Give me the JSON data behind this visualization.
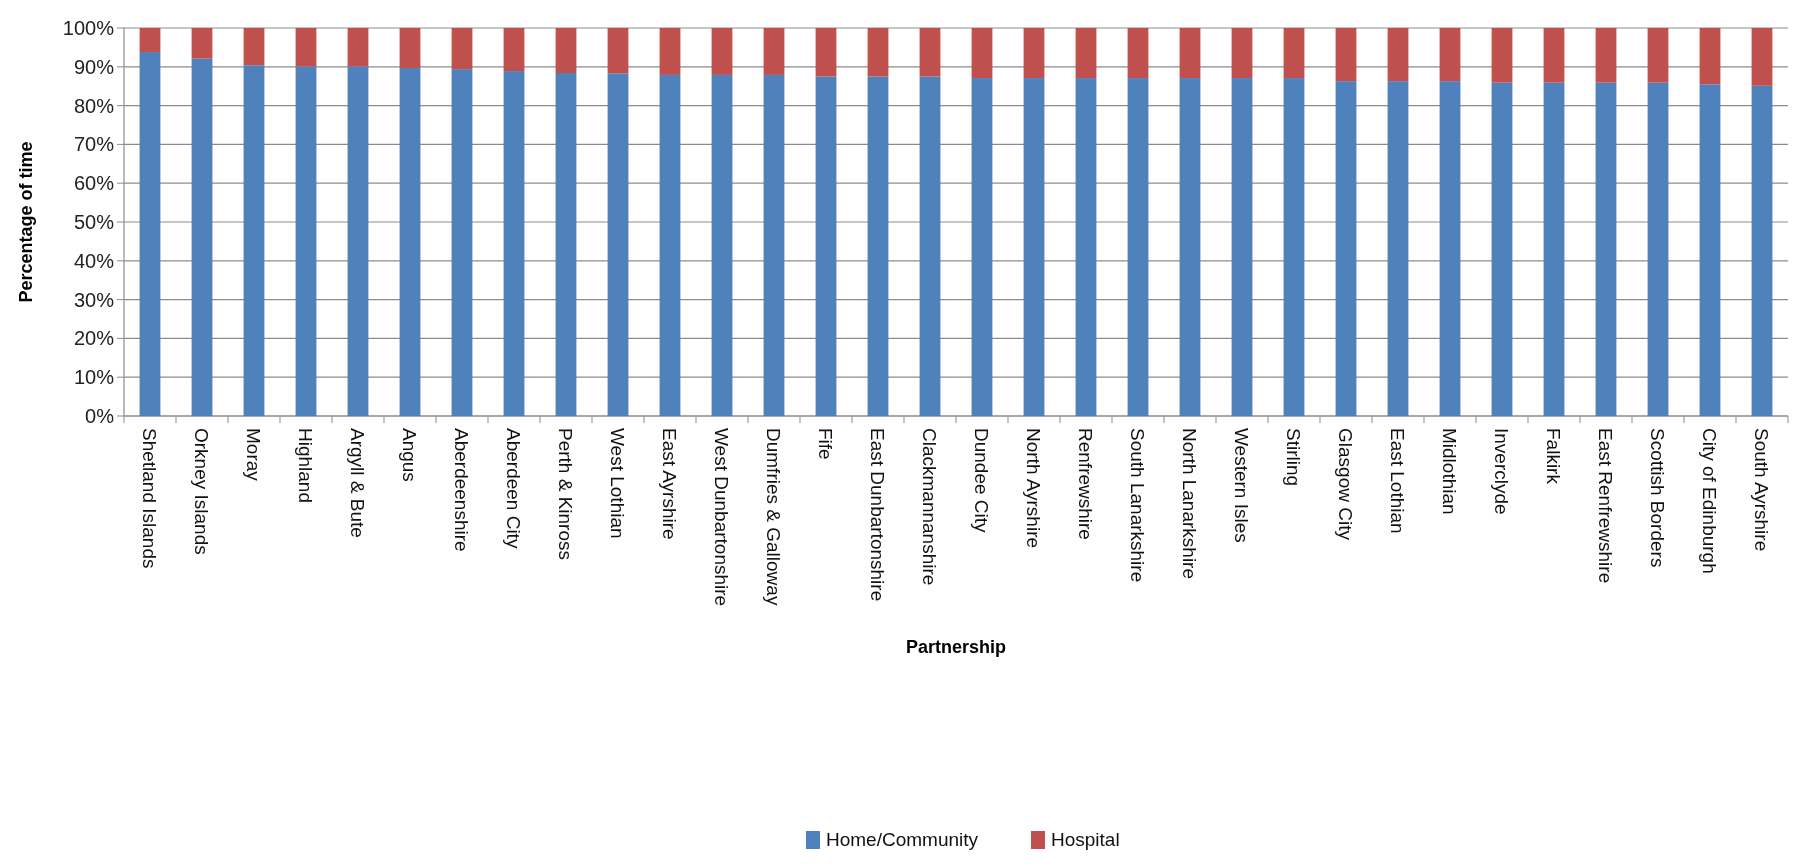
{
  "chart_data": {
    "type": "bar",
    "stacked": true,
    "xlabel": "Partnership",
    "ylabel": "Percentage of time",
    "categories": [
      "Shetland Islands",
      "Orkney Islands",
      "Moray",
      "Highland",
      "Argyll & Bute",
      "Angus",
      "Aberdeenshire",
      "Aberdeen City",
      "Perth & Kinross",
      "West Lothian",
      "East Ayrshire",
      "West Dunbartonshire",
      "Dumfries & Galloway",
      "Fife",
      "East Dunbartonshire",
      "Clackmannanshire",
      "Dundee City",
      "North Ayrshire",
      "Renfrewshire",
      "South Lanarkshire",
      "North Lanarkshire",
      "Western Isles",
      "Stirling",
      "Glasgow City",
      "East Lothian",
      "Midlothian",
      "Inverclyde",
      "Falkirk",
      "East Renfrewshire",
      "Scottish Borders",
      "City of Edinburgh",
      "South Ayrshire"
    ],
    "series": [
      {
        "name": "Home/Community",
        "color": "#4f81bd",
        "values": [
          93.8,
          92.1,
          90.4,
          90.1,
          90.1,
          89.7,
          89.4,
          88.9,
          88.4,
          88.3,
          87.9,
          87.9,
          87.9,
          87.5,
          87.5,
          87.5,
          87.1,
          87.1,
          87.1,
          87.1,
          87.1,
          87.1,
          87.1,
          86.3,
          86.3,
          86.3,
          85.9,
          85.9,
          85.9,
          85.9,
          85.5,
          85.1
        ]
      },
      {
        "name": "Hospital",
        "color": "#c0504d",
        "values": [
          6.2,
          7.9,
          9.6,
          9.9,
          9.9,
          10.3,
          10.6,
          11.1,
          11.6,
          11.7,
          12.1,
          12.1,
          12.1,
          12.5,
          12.5,
          12.5,
          12.9,
          12.9,
          12.9,
          12.9,
          12.9,
          12.9,
          12.9,
          13.7,
          13.7,
          13.7,
          14.1,
          14.1,
          14.1,
          14.1,
          14.5,
          14.9
        ]
      }
    ],
    "ylim": [
      0,
      100
    ],
    "yticks": [
      {
        "value": 0,
        "label": "0%"
      },
      {
        "value": 10,
        "label": "10%"
      },
      {
        "value": 20,
        "label": "20%"
      },
      {
        "value": 30,
        "label": "30%"
      },
      {
        "value": 40,
        "label": "40%"
      },
      {
        "value": 50,
        "label": "50%"
      },
      {
        "value": 60,
        "label": "60%"
      },
      {
        "value": 70,
        "label": "70%"
      },
      {
        "value": 80,
        "label": "80%"
      },
      {
        "value": 90,
        "label": "90%"
      },
      {
        "value": 100,
        "label": "100%"
      }
    ],
    "grid": "y",
    "legend": "bottom"
  }
}
